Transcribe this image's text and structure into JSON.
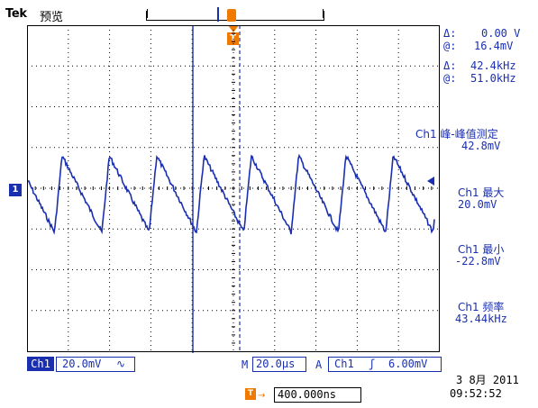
{
  "header": {
    "brand": "Tek",
    "mode": "预览"
  },
  "trigger": {
    "t_label": "T"
  },
  "channel": {
    "marker": "1"
  },
  "cursors": {
    "delta_v_label": "Δ:",
    "delta_v_value": "0.00 V",
    "at_v_label": "@:",
    "at_v_value": "16.4mV",
    "delta_f_label": "Δ:",
    "delta_f_value": "42.4kHz",
    "at_f_label": "@:",
    "at_f_value": "51.0kHz"
  },
  "measurements": [
    {
      "label": "Ch1 峰-峰值测定",
      "value": "42.8mV"
    },
    {
      "label": "Ch1 最大",
      "value": "20.0mV"
    },
    {
      "label": "Ch1 最小",
      "value": "-22.8mV"
    },
    {
      "label": "Ch1 频率",
      "value": "43.44kHz"
    }
  ],
  "status": {
    "ch1": "Ch1",
    "volts_div": "20.0mV",
    "coupling_symbol": "∿",
    "m_label": "M",
    "time_div": "20.0µs",
    "a_label": "A",
    "trig_source": "Ch1",
    "trig_slope": "ʃ",
    "trig_level": "6.00mV"
  },
  "horizontal": {
    "t_label": "T",
    "arrow": "→",
    "position": "400.000ns"
  },
  "clock": {
    "date": "3 8月 2011",
    "time": "09:52:52"
  },
  "colors": {
    "trace": "#1a2fb0",
    "accent": "#f07a00",
    "grid": "#000000"
  },
  "icons": {
    "trigger": "trigger-t-icon",
    "channel": "channel-marker-icon",
    "coupling": "ac-coupling-icon",
    "slope": "rising-edge-icon"
  }
}
